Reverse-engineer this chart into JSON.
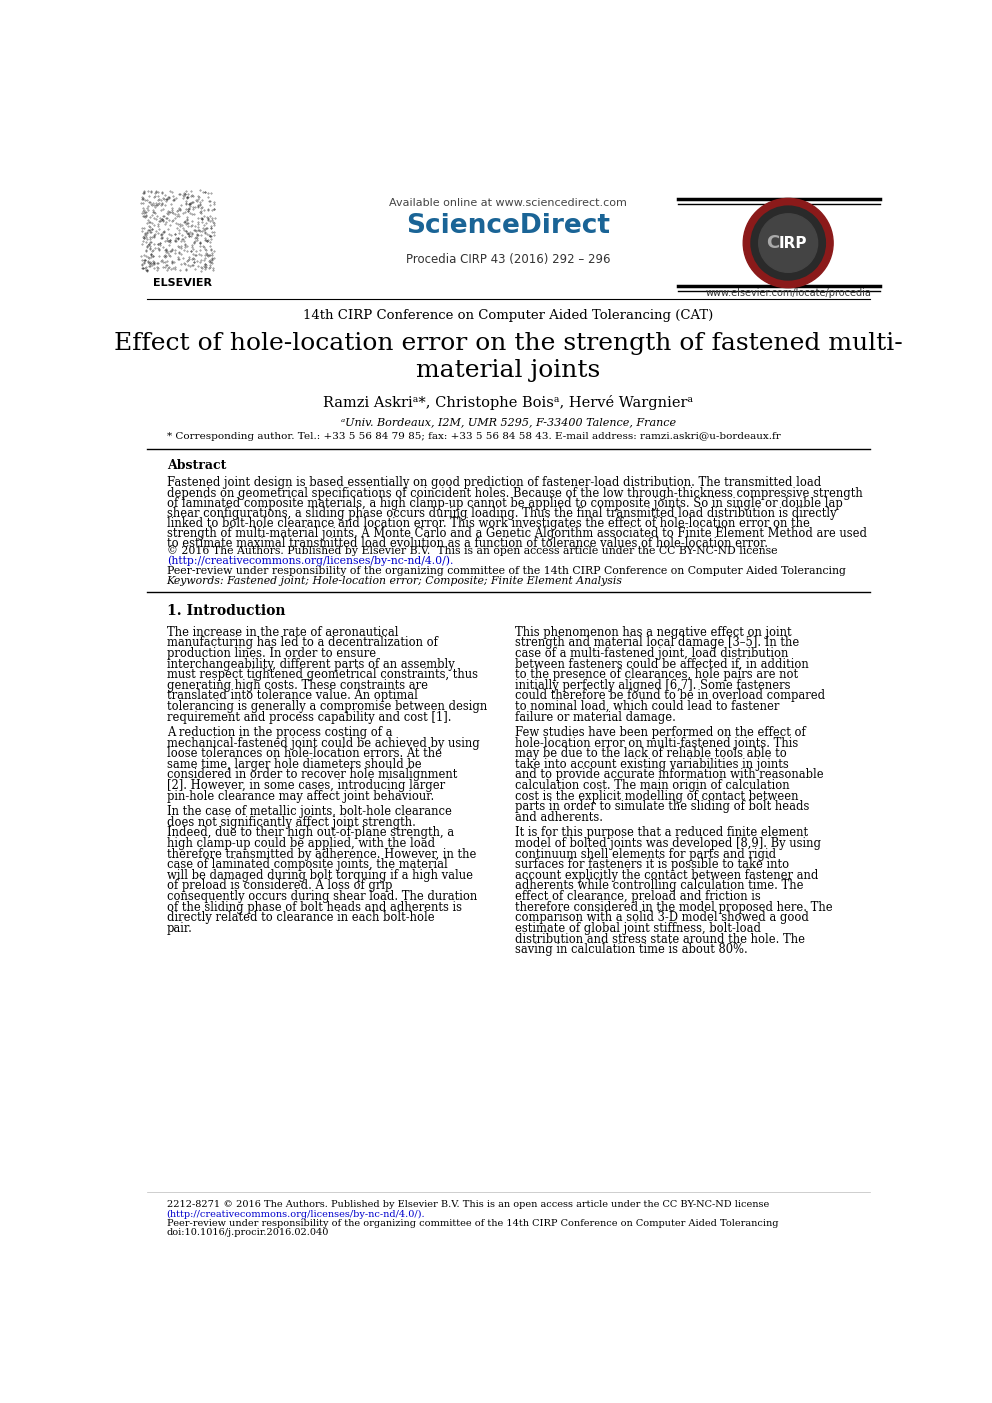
{
  "page_width": 9.92,
  "page_height": 14.03,
  "bg_color": "#ffffff",
  "header_available": "Available online at www.sciencedirect.com",
  "header_sciencedirect": "ScienceDirect",
  "header_procedia": "Procedia CIRP 43 (2016) 292 – 296",
  "header_website": "www.elsevier.com/locate/procedia",
  "conference": "14th CIRP Conference on Computer Aided Tolerancing (CAT)",
  "title_line1": "Effect of hole-location error on the strength of fastened multi-",
  "title_line2": "material joints",
  "authors": "Ramzi Askriᵃ*, Christophe Boisᵃ, Hervé Wargnierᵃ",
  "affiliation": "ᵃUniv. Bordeaux, I2M, UMR 5295, F-33400 Talence, France",
  "corresponding": "* Corresponding author. Tel.: +33 5 56 84 79 85; fax: +33 5 56 84 58 43. E-mail address: ramzi.askri@u-bordeaux.fr",
  "abstract_title": "Abstract",
  "abstract_text": "Fastened joint design is based essentially on good prediction of fastener-load distribution. The transmitted load depends on geometrical specifications of coincident holes. Because of the low through-thickness compressive strength of laminated composite materials, a high clamp-up cannot be applied to composite joints. So in single or double lap shear configurations, a sliding phase occurs during loading. Thus the final transmitted load distribution is directly linked to bolt-hole clearance and location error. This work investigates the effect of hole-location error on the strength of multi-material joints. A Monte Carlo and a Genetic Algorithm associated to Finite Element Method are used to estimate maximal transmitted load evolution as a function of tolerance values of hole-location error.",
  "copyright_text": "© 2016 The Authors. Published by Elsevier B.V.  This is an open access article under the CC BY-NC-ND license",
  "license_url": "(http://creativecommons.org/licenses/by-nc-nd/4.0/).",
  "peer_review": "Peer-review under responsibility of the organizing committee of the 14th CIRP Conference on Computer Aided Tolerancing",
  "keywords": "Keywords: Fastened joint; Hole-location error; Composite; Finite Element Analysis",
  "section1_title": "1. Introduction",
  "col1_para1": "The increase in the rate of aeronautical manufacturing has led to a decentralization of production lines. In order to ensure interchangeability, different parts of an assembly must respect tightened geometrical constraints, thus generating high costs. These constraints are translated into tolerance value. An optimal tolerancing is generally a compromise between design requirement and process capability and cost [1].",
  "col1_para2": "A reduction in the process costing of a mechanical-fastened joint could be achieved by using loose tolerances on hole-location errors. At the same time, larger hole diameters should be considered in order to recover hole misalignment [2]. However, in some cases, introducing larger pin-hole clearance may affect joint behaviour.",
  "col1_para3": "In the case of metallic joints, bolt-hole clearance does not significantly affect joint strength. Indeed, due to their high out-of-plane strength, a high clamp-up could be applied, with the load therefore transmitted by adherence. However, in the case of laminated composite joints, the material will be damaged during bolt torquing if a high value of preload is considered. A loss of grip consequently occurs during shear load. The duration of the sliding phase of bolt heads and adherents is directly related to clearance in each bolt-hole pair.",
  "col2_para1": "This phenomenon has a negative effect on joint strength and material local damage [3–5]. In the case of a multi-fastened joint, load distribution between fasteners could be affected if, in addition to the presence of clearances, hole pairs are not initially perfectly aligned [6,7]. Some fasteners could therefore be found to be in overload compared to nominal load, which could lead to fastener failure or material damage.",
  "col2_para2": "Few studies have been performed on the effect of hole-location error on multi-fastened joints. This may be  due to the lack of reliable tools able to take into account existing variabilities in joints and to provide accurate information with reasonable calculation cost. The main origin of calculation cost is the explicit modelling of contact between parts in order to simulate the sliding of bolt heads and adherents.",
  "col2_para3": "It is for this purpose that a reduced finite element model of bolted joints was developed [8,9]. By using continuum shell elements for parts and rigid surfaces for fasteners it is possible to take into account explicitly the contact between fastener and adherents while controlling calculation time. The effect of clearance, preload and friction is therefore considered in the model proposed here. The comparison with a solid 3-D model showed a good estimate of global joint stiffness, bolt-load distribution and stress state around the hole.  The saving in calculation time is about 80%.",
  "footer_copyright": "2212-8271 © 2016 The Authors. Published by Elsevier B.V. This is an open access article under the CC BY-NC-ND license",
  "footer_url": "(http://creativecommons.org/licenses/by-nc-nd/4.0/).",
  "footer_peer": "Peer-review under responsibility of the organizing committee of the 14th CIRP Conference on Computer Aided Tolerancing",
  "footer_doi": "doi:10.1016/j.procir.2016.02.040",
  "link_color": "#0000cc",
  "sciencedirect_color": "#1a6496",
  "elsevier_text": "ELSEVIER"
}
